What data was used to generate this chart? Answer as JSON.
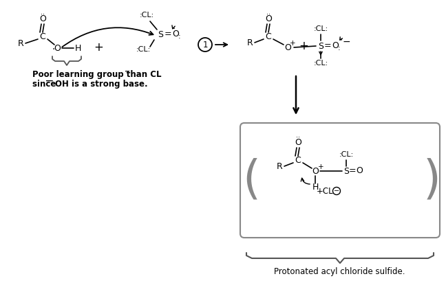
{
  "bg_color": "#ffffff",
  "figsize": [
    6.48,
    4.28
  ],
  "dpi": 100,
  "bottom_label": "Protonated acyl chloride sulfide.",
  "note_line1": "Poor learning group than CL̅⁻",
  "note_line2": "since ̅OH is a strong base."
}
